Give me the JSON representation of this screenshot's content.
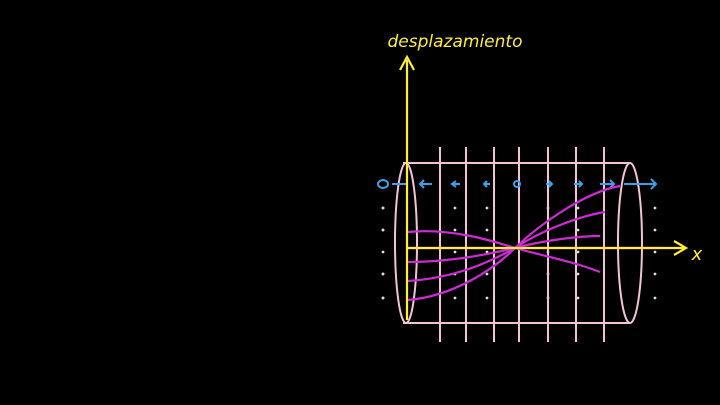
{
  "axis_labels": {
    "vertical": "desplazamiento",
    "horizontal": "x"
  }
}
